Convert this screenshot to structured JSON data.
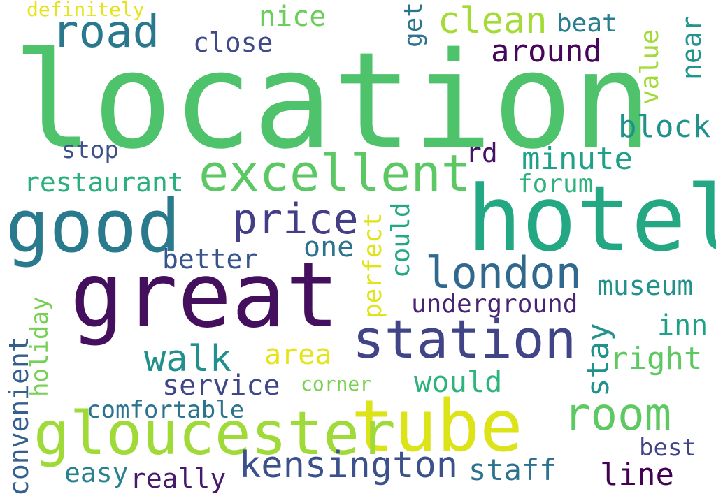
{
  "title": "",
  "words": [
    {
      "text": "location",
      "color": "#4ec36b",
      "vertical": false
    },
    {
      "text": "great",
      "color": "#440f5c",
      "vertical": false
    },
    {
      "text": "hotel",
      "color": "#24a884",
      "vertical": false
    },
    {
      "text": "tube",
      "color": "#dce319",
      "vertical": false
    },
    {
      "text": "good",
      "color": "#2a7a8e",
      "vertical": false
    },
    {
      "text": "excellent",
      "color": "#5cc863",
      "vertical": false
    },
    {
      "text": "station",
      "color": "#414487",
      "vertical": false
    },
    {
      "text": "gloucester",
      "color": "#a0da39",
      "vertical": false
    },
    {
      "text": "price",
      "color": "#433e85",
      "vertical": false
    },
    {
      "text": "london",
      "color": "#31688e",
      "vertical": false
    },
    {
      "text": "room",
      "color": "#5ec962",
      "vertical": false
    },
    {
      "text": "kensington",
      "color": "#3b518b",
      "vertical": false
    },
    {
      "text": "road",
      "color": "#2a788e",
      "vertical": false
    },
    {
      "text": "clean",
      "color": "#a5db36",
      "vertical": false
    },
    {
      "text": "around",
      "color": "#46075a",
      "vertical": false
    },
    {
      "text": "nice",
      "color": "#6ccd5a",
      "vertical": false
    },
    {
      "text": "close",
      "color": "#3e4a89",
      "vertical": false
    },
    {
      "text": "beat",
      "color": "#287d8e",
      "vertical": false
    },
    {
      "text": "definitely",
      "color": "#e5e419",
      "vertical": false
    },
    {
      "text": "get",
      "color": "#2c738e",
      "vertical": true
    },
    {
      "text": "value",
      "color": "#a2da37",
      "vertical": true
    },
    {
      "text": "near",
      "color": "#1f958b",
      "vertical": true
    },
    {
      "text": "block",
      "color": "#20928c",
      "vertical": false
    },
    {
      "text": "minute",
      "color": "#1fa088",
      "vertical": false
    },
    {
      "text": "rd",
      "color": "#471365",
      "vertical": false
    },
    {
      "text": "stop",
      "color": "#3b528b",
      "vertical": false
    },
    {
      "text": "forum",
      "color": "#2db27d",
      "vertical": false
    },
    {
      "text": "restaurant",
      "color": "#2ab07f",
      "vertical": false
    },
    {
      "text": "one",
      "color": "#2c728e",
      "vertical": false
    },
    {
      "text": "could",
      "color": "#22a884",
      "vertical": true
    },
    {
      "text": "perfect",
      "color": "#e0e318",
      "vertical": true
    },
    {
      "text": "better",
      "color": "#39568c",
      "vertical": false
    },
    {
      "text": "museum",
      "color": "#21918c",
      "vertical": false
    },
    {
      "text": "underground",
      "color": "#482475",
      "vertical": false
    },
    {
      "text": "stay",
      "color": "#21918c",
      "vertical": true
    },
    {
      "text": "inn",
      "color": "#1fa187",
      "vertical": false
    },
    {
      "text": "right",
      "color": "#5ec962",
      "vertical": false
    },
    {
      "text": "walk",
      "color": "#218f8d",
      "vertical": false
    },
    {
      "text": "area",
      "color": "#e5e419",
      "vertical": false
    },
    {
      "text": "holiday",
      "color": "#75d054",
      "vertical": true
    },
    {
      "text": "would",
      "color": "#2eb37c",
      "vertical": false
    },
    {
      "text": "service",
      "color": "#3f4788",
      "vertical": false
    },
    {
      "text": "corner",
      "color": "#7ad151",
      "vertical": false
    },
    {
      "text": "convenient",
      "color": "#355f8d",
      "vertical": true
    },
    {
      "text": "comfortable",
      "color": "#2c738e",
      "vertical": false
    },
    {
      "text": "easy",
      "color": "#26828e",
      "vertical": false
    },
    {
      "text": "really",
      "color": "#481a6c",
      "vertical": false
    },
    {
      "text": "staff",
      "color": "#2c728e",
      "vertical": false
    },
    {
      "text": "best",
      "color": "#414487",
      "vertical": false
    },
    {
      "text": "line",
      "color": "#440154",
      "vertical": false
    }
  ]
}
